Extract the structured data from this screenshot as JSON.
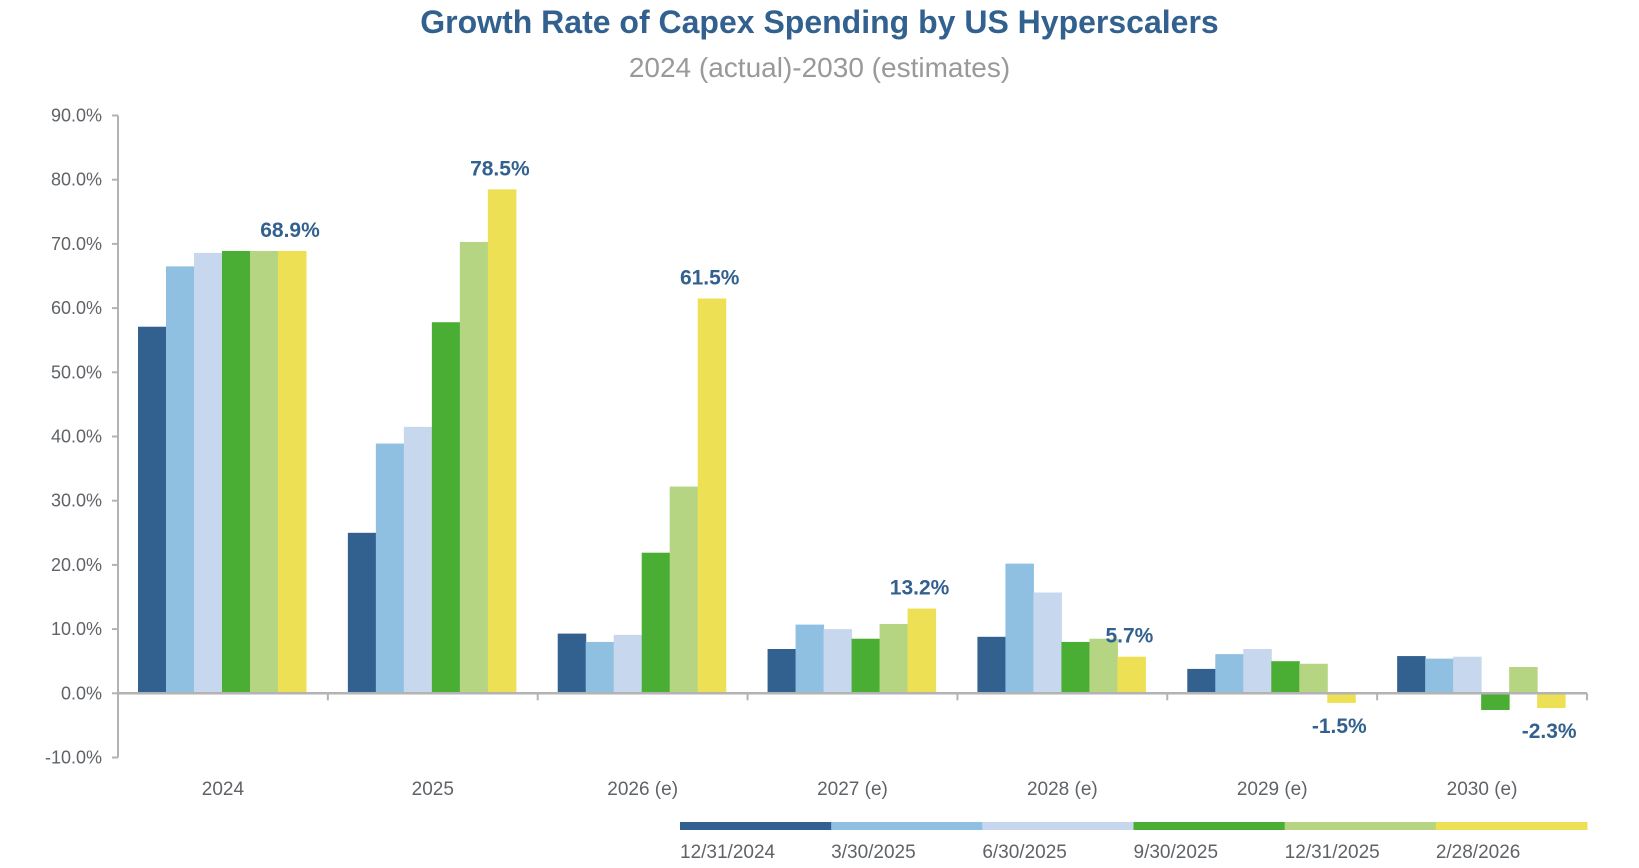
{
  "chart_data": {
    "type": "bar",
    "title": "Growth Rate of Capex Spending by US Hyperscalers",
    "subtitle": "2024 (actual)-2030 (estimates)",
    "xlabel": "",
    "ylabel": "",
    "ylim": [
      -10,
      90
    ],
    "yticks": [
      -10,
      0,
      10,
      20,
      30,
      40,
      50,
      60,
      70,
      80,
      90
    ],
    "ytick_labels": [
      "-10.0%",
      "0.0%",
      "10.0%",
      "20.0%",
      "30.0%",
      "40.0%",
      "50.0%",
      "60.0%",
      "70.0%",
      "80.0%",
      "90.0%"
    ],
    "grid": false,
    "categories": [
      "2024",
      "2025",
      "2026 (e)",
      "2027 (e)",
      "2028 (e)",
      "2029 (e)",
      "2030 (e)"
    ],
    "legend_position": "bottom-right",
    "series": [
      {
        "name": "12/31/2024",
        "color": "#33618F",
        "values": [
          57.1,
          25.0,
          9.3,
          6.9,
          8.8,
          3.8,
          5.8
        ]
      },
      {
        "name": "3/30/2025",
        "color": "#8FC0E2",
        "values": [
          66.5,
          38.9,
          8.0,
          10.7,
          20.2,
          6.1,
          5.4
        ]
      },
      {
        "name": "6/30/2025",
        "color": "#C7D8EE",
        "values": [
          68.6,
          41.5,
          9.1,
          10.0,
          15.7,
          6.9,
          5.7
        ]
      },
      {
        "name": "9/30/2025",
        "color": "#4AAE34",
        "values": [
          68.9,
          57.8,
          21.9,
          8.5,
          8.0,
          5.0,
          -2.6
        ]
      },
      {
        "name": "12/31/2025",
        "color": "#B5D582",
        "values": [
          68.9,
          70.3,
          32.2,
          10.8,
          8.5,
          4.6,
          4.1
        ]
      },
      {
        "name": "2/28/2026",
        "color": "#EDE055",
        "values": [
          68.9,
          78.5,
          61.5,
          13.2,
          5.7,
          -1.5,
          -2.3
        ]
      }
    ],
    "annotations": [
      {
        "category": "2024",
        "series": "2/28/2026",
        "text": "68.9%"
      },
      {
        "category": "2025",
        "series": "2/28/2026",
        "text": "78.5%"
      },
      {
        "category": "2026 (e)",
        "series": "2/28/2026",
        "text": "61.5%"
      },
      {
        "category": "2027 (e)",
        "series": "2/28/2026",
        "text": "13.2%"
      },
      {
        "category": "2028 (e)",
        "series": "2/28/2026",
        "text": "5.7%"
      },
      {
        "category": "2029 (e)",
        "series": "2/28/2026",
        "text": "-1.5%"
      },
      {
        "category": "2030 (e)",
        "series": "2/28/2026",
        "text": "-2.3%"
      }
    ],
    "colors": {
      "title": "#33618F",
      "subtitle": "#999999",
      "axis": "#b3b3b3",
      "label": "#5f6368",
      "data_label": "#33618F"
    }
  }
}
